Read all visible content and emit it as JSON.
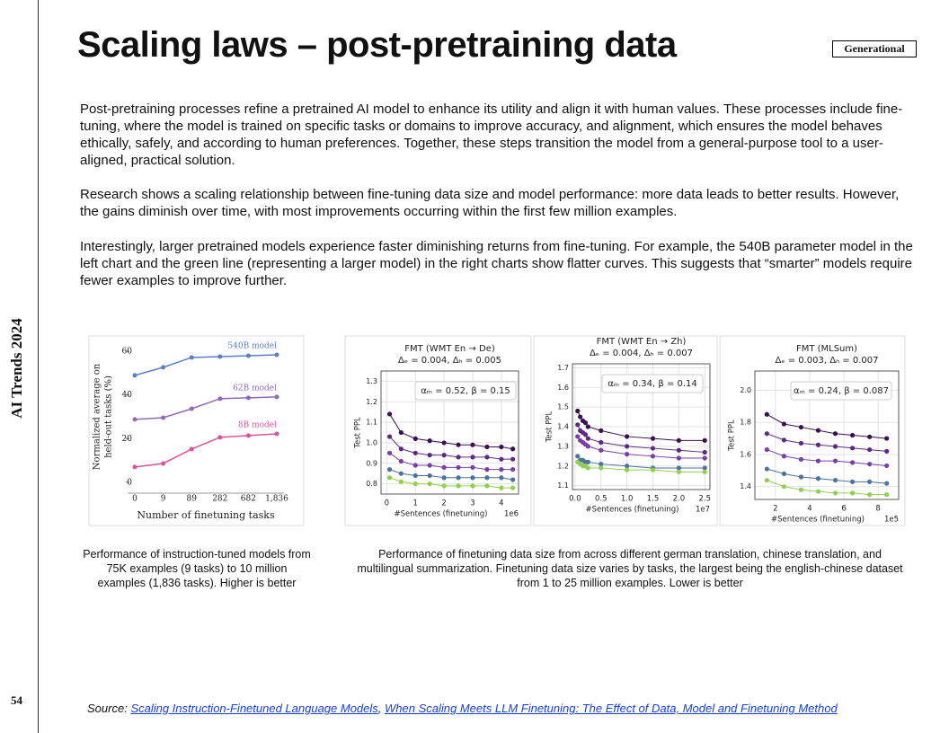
{
  "header": {
    "title": "Scaling laws – post-pretraining data",
    "tag": "Generational"
  },
  "sidebar": {
    "label": "AI Trends 2024",
    "page_number": "54"
  },
  "paragraphs": [
    "Post-pretraining processes refine a pretrained AI model to enhance its utility and align it with human values. These processes include fine-tuning, where the model is trained on specific tasks or domains to improve accuracy, and alignment, which ensures the model behaves ethically, safely, and according to human preferences. Together, these steps transition the model from a general-purpose tool to a user-aligned, practical solution.",
    "Research shows a scaling relationship between fine-tuning data size and model performance: more data leads to better results. However, the gains diminish over time, with most improvements occurring within the first few million examples.",
    "Interestingly, larger pretrained models experience faster diminishing returns from fine-tuning. For example, the 540B parameter model in the left chart and the green line (representing a larger model) in the right charts show flatter curves. This suggests that “smarter” models require fewer examples to improve further."
  ],
  "captions": [
    "Performance of instruction-tuned models from 75K examples (9 tasks) to 10 million examples (1,836 tasks). Higher is better",
    "Performance of finetuning data size from across different german translation, chinese translation, and multilingual summarization. Finetuning data size varies by tasks, the largest being the english-chinese dataset from 1 to 25 million examples. Lower is better"
  ],
  "source": {
    "label": "Source:",
    "links": [
      "Scaling Instruction-Finetuned Language Models",
      "When Scaling Meets LLM Finetuning: The Effect of Data, Model and Finetuning Method"
    ],
    "separator": ","
  },
  "chart_data": [
    {
      "type": "line",
      "ylabel": [
        "Normalized average on",
        "held-out tasks (%)"
      ],
      "xlabel": "Number of finetuning tasks",
      "categories": [
        {
          "value": 0,
          "label": "0"
        },
        {
          "value": 9,
          "label": "9"
        },
        {
          "value": 89,
          "label": "89"
        },
        {
          "value": 282,
          "label": "282"
        },
        {
          "value": 682,
          "label": "682"
        },
        {
          "value": 1836,
          "label": "1,836"
        }
      ],
      "ylim": [
        -5,
        65
      ],
      "yticks": [
        0,
        20,
        40,
        60
      ],
      "grid": false,
      "series": [
        {
          "name": "540B model",
          "color": "#5b7fc4",
          "values": [
            49,
            52.7,
            57.2,
            57.6,
            58,
            58.4
          ]
        },
        {
          "name": "62B model",
          "color": "#8e6bb8",
          "values": [
            28.8,
            29.6,
            33.7,
            38.3,
            38.7,
            39.1
          ]
        },
        {
          "name": "8B model",
          "color": "#d9559a",
          "values": [
            7,
            8.6,
            15.2,
            20.6,
            21.4,
            22.2
          ]
        }
      ]
    },
    {
      "type": "scatter",
      "title": [
        "FMT (WMT En → De)",
        "Δₑ = 0.004, Δₕ = 0.005"
      ],
      "annotation": "αₘ = 0.52, β = 0.15",
      "xlabel": "#Sentences (finetuning)",
      "xunit": "1e6",
      "ylabel": "Test PPL",
      "x": [
        0.1,
        0.5,
        1,
        1.5,
        2,
        2.5,
        3,
        3.5,
        4,
        4.4
      ],
      "xlim": [
        -0.2,
        4.6
      ],
      "xticks": [
        0,
        1,
        2,
        3,
        4
      ],
      "ylim": [
        0.75,
        1.35
      ],
      "yticks": [
        0.8,
        0.9,
        {
          "value": 1,
          "label": "1.0"
        },
        1.1,
        1.2,
        1.3
      ],
      "grid": true,
      "series": [
        {
          "color": "#3b0f50",
          "values": [
            1.14,
            1.05,
            1.02,
            1.01,
            1.0,
            0.99,
            0.99,
            0.98,
            0.98,
            0.97
          ]
        },
        {
          "color": "#5c2a84",
          "values": [
            1.03,
            0.97,
            0.95,
            0.94,
            0.94,
            0.93,
            0.93,
            0.93,
            0.92,
            0.92
          ]
        },
        {
          "color": "#7a3fa6",
          "values": [
            0.95,
            0.91,
            0.89,
            0.89,
            0.88,
            0.88,
            0.88,
            0.87,
            0.87,
            0.87
          ]
        },
        {
          "color": "#4c72a0",
          "values": [
            0.87,
            0.85,
            0.84,
            0.84,
            0.83,
            0.83,
            0.83,
            0.83,
            0.83,
            0.82
          ]
        },
        {
          "color": "#8fd14f",
          "values": [
            0.83,
            0.81,
            0.8,
            0.8,
            0.79,
            0.79,
            0.79,
            0.79,
            0.78,
            0.78
          ]
        }
      ]
    },
    {
      "type": "scatter",
      "title": [
        "FMT (WMT En → Zh)",
        "Δₑ = 0.004, Δₕ = 0.007"
      ],
      "annotation": "αₘ = 0.34, β = 0.14",
      "xlabel": "#Sentences (finetuning)",
      "xunit": "1e7",
      "ylabel": "Test PPL",
      "x": [
        0.05,
        0.1,
        0.15,
        0.2,
        0.25,
        0.5,
        1,
        1.5,
        2,
        2.5
      ],
      "xlim": [
        -0.05,
        2.6
      ],
      "xticks": [
        {
          "value": 0,
          "label": "0.0"
        },
        0.5,
        {
          "value": 1,
          "label": "1.0"
        },
        1.5,
        {
          "value": 2,
          "label": "2.0"
        },
        2.5
      ],
      "ylim": [
        1.08,
        1.72
      ],
      "yticks": [
        1.1,
        1.2,
        1.3,
        1.4,
        1.5,
        1.6,
        1.7
      ],
      "grid": true,
      "series": [
        {
          "color": "#3b0f50",
          "values": [
            1.48,
            1.45,
            1.43,
            1.42,
            1.4,
            1.38,
            1.35,
            1.34,
            1.33,
            1.33
          ]
        },
        {
          "color": "#5c2a84",
          "values": [
            1.41,
            1.38,
            1.37,
            1.36,
            1.34,
            1.32,
            1.3,
            1.29,
            1.28,
            1.27
          ]
        },
        {
          "color": "#7a3fa6",
          "values": [
            1.35,
            1.33,
            1.32,
            1.31,
            1.3,
            1.28,
            1.26,
            1.25,
            1.24,
            1.24
          ]
        },
        {
          "color": "#4c72a0",
          "values": [
            1.25,
            1.23,
            1.23,
            1.22,
            1.22,
            1.21,
            1.2,
            1.19,
            1.19,
            1.19
          ]
        },
        {
          "color": "#8fd14f",
          "values": [
            1.22,
            1.21,
            1.2,
            1.2,
            1.19,
            1.19,
            1.18,
            1.18,
            1.17,
            1.17
          ]
        }
      ]
    },
    {
      "type": "scatter",
      "title": [
        "FMT (MLSum)",
        "Δₑ = 0.003, Δₕ = 0.007"
      ],
      "annotation": "αₘ = 0.24, β = 0.087",
      "xlabel": "#Sentences (finetuning)",
      "xunit": "1e5",
      "ylabel": "Test PPL",
      "x": [
        1.5,
        2.5,
        3.5,
        4.5,
        5.5,
        6.5,
        7.5,
        8.5
      ],
      "xlim": [
        0.8,
        9.2
      ],
      "xticks": [
        2,
        4,
        6,
        8
      ],
      "ylim": [
        1.32,
        2.12
      ],
      "yticks": [
        1.4,
        1.6,
        1.8,
        {
          "value": 2,
          "label": "2.0"
        }
      ],
      "grid": true,
      "series": [
        {
          "color": "#3b0f50",
          "values": [
            1.85,
            1.79,
            1.77,
            1.75,
            1.73,
            1.72,
            1.71,
            1.7
          ]
        },
        {
          "color": "#5c2a84",
          "values": [
            1.73,
            1.69,
            1.67,
            1.66,
            1.65,
            1.64,
            1.63,
            1.62
          ]
        },
        {
          "color": "#7a3fa6",
          "values": [
            1.63,
            1.59,
            1.57,
            1.56,
            1.56,
            1.55,
            1.54,
            1.53
          ]
        },
        {
          "color": "#4c72a0",
          "values": [
            1.51,
            1.48,
            1.46,
            1.45,
            1.44,
            1.43,
            1.43,
            1.42
          ]
        },
        {
          "color": "#8fd14f",
          "values": [
            1.44,
            1.4,
            1.38,
            1.37,
            1.36,
            1.36,
            1.35,
            1.35
          ]
        }
      ]
    }
  ]
}
